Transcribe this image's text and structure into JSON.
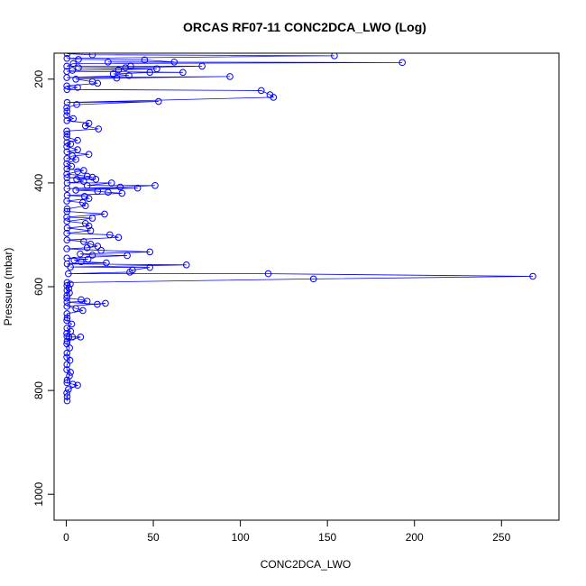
{
  "chart_data": {
    "type": "scatter",
    "title": "ORCAS RF07-11 CONC2DCA_LWO (Log)",
    "xlabel": "CONC2DCA_LWO",
    "ylabel": "Pressure (mbar)",
    "xlim": [
      -7,
      283
    ],
    "ylim": [
      1050,
      150
    ],
    "y_reversed": true,
    "x_ticks": [
      0,
      50,
      100,
      150,
      200,
      250
    ],
    "y_ticks": [
      200,
      400,
      600,
      800,
      1000
    ],
    "connected": true,
    "marker": "open-circle",
    "grid": false,
    "colors": {
      "series": "#0000ff",
      "axis": "#000000",
      "background": "#ffffff"
    },
    "series": [
      {
        "points": [
          [
            0.5,
            820
          ],
          [
            0.5,
            812
          ],
          [
            0.3,
            805
          ],
          [
            1.2,
            798
          ],
          [
            6.5,
            790
          ],
          [
            3.8,
            788
          ],
          [
            0.4,
            785
          ],
          [
            0.5,
            780
          ],
          [
            1.8,
            772
          ],
          [
            2.4,
            765
          ],
          [
            0.3,
            760
          ],
          [
            0.4,
            750
          ],
          [
            2.1,
            742
          ],
          [
            0.3,
            736
          ],
          [
            0.4,
            728
          ],
          [
            1.9,
            718
          ],
          [
            0.3,
            710
          ],
          [
            0.5,
            705
          ],
          [
            8.2,
            697
          ],
          [
            3.5,
            697
          ],
          [
            1.5,
            697
          ],
          [
            0.4,
            696
          ],
          [
            0.3,
            690
          ],
          [
            2.5,
            686
          ],
          [
            0.4,
            680
          ],
          [
            3.1,
            672
          ],
          [
            0.3,
            665
          ],
          [
            0.5,
            660
          ],
          [
            0.4,
            652
          ],
          [
            9.5,
            646
          ],
          [
            5.5,
            642
          ],
          [
            0.4,
            638
          ],
          [
            22.5,
            632
          ],
          [
            17.8,
            634
          ],
          [
            0.4,
            630
          ],
          [
            12.0,
            628
          ],
          [
            8.5,
            625
          ],
          [
            0.3,
            622
          ],
          [
            0.4,
            617
          ],
          [
            1.8,
            612
          ],
          [
            0.4,
            607
          ],
          [
            1.5,
            603
          ],
          [
            0.4,
            598
          ],
          [
            2.3,
            595
          ],
          [
            0.5,
            592
          ],
          [
            142,
            585
          ],
          [
            268,
            580
          ],
          [
            116,
            575
          ],
          [
            1.2,
            575
          ],
          [
            36.5,
            572
          ],
          [
            38,
            568
          ],
          [
            48,
            563
          ],
          [
            2.4,
            562
          ],
          [
            69,
            558
          ],
          [
            0.5,
            556
          ],
          [
            23,
            554
          ],
          [
            8.5,
            552
          ],
          [
            4.5,
            549
          ],
          [
            12.5,
            547
          ],
          [
            0.4,
            545
          ],
          [
            35,
            540
          ],
          [
            15,
            539
          ],
          [
            8.0,
            537
          ],
          [
            48,
            533
          ],
          [
            20,
            530
          ],
          [
            0.3,
            527
          ],
          [
            12,
            525
          ],
          [
            18,
            522
          ],
          [
            14,
            518
          ],
          [
            10,
            513
          ],
          [
            0.4,
            510
          ],
          [
            30,
            505
          ],
          [
            25,
            500
          ],
          [
            0.3,
            497
          ],
          [
            14,
            492
          ],
          [
            0.5,
            487
          ],
          [
            13,
            483
          ],
          [
            11,
            478
          ],
          [
            0.4,
            474
          ],
          [
            15,
            468
          ],
          [
            0.3,
            466
          ],
          [
            22,
            460
          ],
          [
            0.4,
            455
          ],
          [
            0.5,
            450
          ],
          [
            11,
            444
          ],
          [
            9.5,
            438
          ],
          [
            0.3,
            435
          ],
          [
            13,
            430
          ],
          [
            10.5,
            426
          ],
          [
            0.5,
            424
          ],
          [
            32,
            420
          ],
          [
            24,
            418
          ],
          [
            18,
            416
          ],
          [
            5.5,
            414
          ],
          [
            41,
            410
          ],
          [
            0.4,
            411
          ],
          [
            31,
            408
          ],
          [
            51,
            405
          ],
          [
            12,
            405
          ],
          [
            26,
            400
          ],
          [
            0.5,
            400
          ],
          [
            10,
            397
          ],
          [
            6.0,
            393
          ],
          [
            17,
            393
          ],
          [
            0.4,
            390
          ],
          [
            15,
            389
          ],
          [
            12,
            387
          ],
          [
            0.3,
            383
          ],
          [
            6.5,
            378
          ],
          [
            10,
            376
          ],
          [
            0.4,
            373
          ],
          [
            3.0,
            368
          ],
          [
            0.3,
            363
          ],
          [
            5.5,
            355
          ],
          [
            0.4,
            353
          ],
          [
            3.5,
            348
          ],
          [
            13,
            345
          ],
          [
            0.4,
            340
          ],
          [
            6.5,
            336
          ],
          [
            0.3,
            330
          ],
          [
            2.5,
            325
          ],
          [
            0.4,
            322
          ],
          [
            6.5,
            318
          ],
          [
            0.3,
            312
          ],
          [
            0.4,
            306
          ],
          [
            0.3,
            300
          ],
          [
            18.5,
            296
          ],
          [
            11,
            290
          ],
          [
            13,
            285
          ],
          [
            0.4,
            280
          ],
          [
            4.0,
            276
          ],
          [
            0.3,
            270
          ],
          [
            0.4,
            262
          ],
          [
            0.3,
            255
          ],
          [
            6.0,
            249
          ],
          [
            53,
            243
          ],
          [
            0.5,
            245
          ],
          [
            119,
            235
          ],
          [
            117,
            230
          ],
          [
            112,
            222
          ],
          [
            0.4,
            220
          ],
          [
            6.5,
            216
          ],
          [
            0.3,
            213
          ],
          [
            18,
            208
          ],
          [
            15,
            205
          ],
          [
            5.5,
            200
          ],
          [
            29,
            198
          ],
          [
            94,
            195
          ],
          [
            0.3,
            197
          ],
          [
            36,
            193
          ],
          [
            27,
            190
          ],
          [
            48,
            187
          ],
          [
            67,
            187
          ],
          [
            0.3,
            185
          ],
          [
            3.5,
            183
          ],
          [
            30,
            182
          ],
          [
            52,
            180
          ],
          [
            7.0,
            178
          ],
          [
            34,
            178
          ],
          [
            78,
            175
          ],
          [
            37,
            175
          ],
          [
            0.3,
            175
          ],
          [
            4.0,
            170
          ],
          [
            193,
            168
          ],
          [
            24,
            167
          ],
          [
            62,
            167
          ],
          [
            45,
            163
          ],
          [
            7.0,
            162
          ],
          [
            0.4,
            160
          ],
          [
            154,
            155
          ],
          [
            15,
            153
          ],
          [
            0.5,
            151
          ]
        ]
      }
    ]
  }
}
